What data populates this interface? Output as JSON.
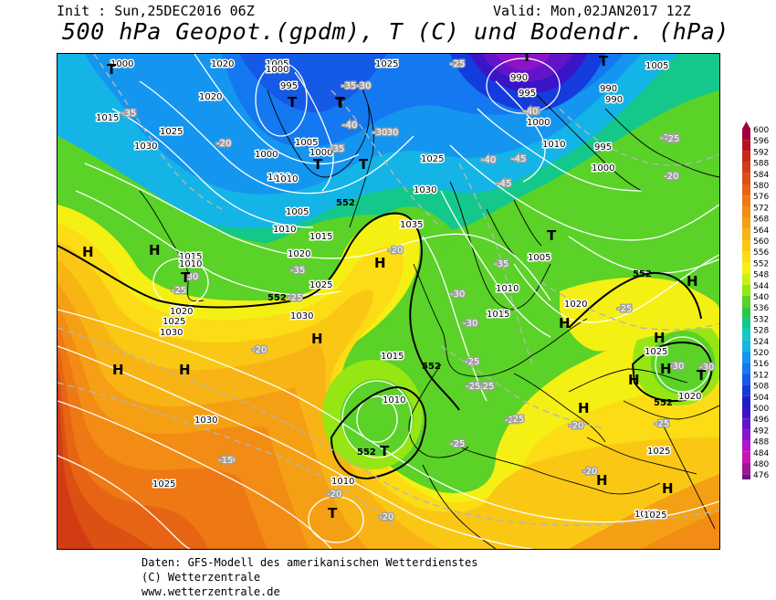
{
  "header": {
    "init_label": "Init : Sun,25DEC2016 06Z",
    "valid_label": "Valid: Mon,02JAN2017 12Z",
    "title": "500 hPa Geopot.(gpdm), T (C) und Bodendr. (hPa)"
  },
  "footer": {
    "line1": "Daten: GFS-Modell des amerikanischen Wetterdienstes",
    "line2": "(C) Wetterzentrale",
    "line3": "www.wetterzentrale.de"
  },
  "legend": {
    "levels": [
      "600",
      "596",
      "592",
      "588",
      "584",
      "580",
      "576",
      "572",
      "568",
      "564",
      "560",
      "556",
      "552",
      "548",
      "544",
      "540",
      "536",
      "532",
      "528",
      "524",
      "520",
      "516",
      "512",
      "508",
      "504",
      "500",
      "496",
      "492",
      "488",
      "484",
      "480",
      "476"
    ],
    "colors": [
      "#a0003c",
      "#b4141e",
      "#c82814",
      "#d23c14",
      "#dc5014",
      "#e66414",
      "#ee7814",
      "#f28c14",
      "#f5a014",
      "#f8b414",
      "#fac814",
      "#fcdc14",
      "#f5f014",
      "#c8f014",
      "#96e614",
      "#5ad228",
      "#28c846",
      "#14c88c",
      "#14c8c8",
      "#14b4e6",
      "#1496f0",
      "#1478f0",
      "#145ae6",
      "#143cdc",
      "#1e1ec8",
      "#3c14c8",
      "#6414c8",
      "#8c14c8",
      "#b414c8",
      "#c814b4",
      "#a01496",
      "#6e1482"
    ]
  },
  "map": {
    "pressure_labels": [
      {
        "text": "1000"
      },
      {
        "text": "1020"
      },
      {
        "text": "1005"
      },
      {
        "text": "1000"
      },
      {
        "text": "1025"
      },
      {
        "text": "995"
      },
      {
        "text": "1020"
      },
      {
        "text": "1015"
      },
      {
        "text": "1025"
      },
      {
        "text": "1030"
      },
      {
        "text": "1005"
      },
      {
        "text": "1000"
      },
      {
        "text": "1010"
      },
      {
        "text": "1000"
      },
      {
        "text": "1010"
      },
      {
        "text": "1005"
      },
      {
        "text": "1010"
      },
      {
        "text": "1015"
      },
      {
        "text": "1020"
      },
      {
        "text": "1025"
      },
      {
        "text": "1030"
      },
      {
        "text": "1035"
      },
      {
        "text": "1025"
      },
      {
        "text": "1030"
      },
      {
        "text": "1035"
      },
      {
        "text": "1015"
      },
      {
        "text": "1010"
      },
      {
        "text": "1020"
      },
      {
        "text": "1025"
      },
      {
        "text": "1030"
      },
      {
        "text": "990"
      },
      {
        "text": "995"
      },
      {
        "text": "1000"
      },
      {
        "text": "1010"
      },
      {
        "text": "990"
      },
      {
        "text": "990"
      },
      {
        "text": "995"
      },
      {
        "text": "1005"
      },
      {
        "text": "1000"
      },
      {
        "text": "1005"
      },
      {
        "text": "1010"
      },
      {
        "text": "1015"
      },
      {
        "text": "1020"
      },
      {
        "text": "1025"
      },
      {
        "text": "1015"
      },
      {
        "text": "1010"
      },
      {
        "text": "1030"
      },
      {
        "text": "1025"
      },
      {
        "text": "1025"
      },
      {
        "text": "1020"
      },
      {
        "text": "1010"
      },
      {
        "text": "1025"
      },
      {
        "text": "1025"
      }
    ],
    "temp_labels": [
      {
        "text": "-25"
      },
      {
        "text": "-30"
      },
      {
        "text": "-35"
      },
      {
        "text": "-40"
      },
      {
        "text": "-35"
      },
      {
        "text": "-30"
      },
      {
        "text": "-30"
      },
      {
        "text": "-35"
      },
      {
        "text": "-20"
      },
      {
        "text": "-25"
      },
      {
        "text": "-30"
      },
      {
        "text": "-35"
      },
      {
        "text": "-25"
      },
      {
        "text": "-20"
      },
      {
        "text": "-20"
      },
      {
        "text": "-20"
      },
      {
        "text": "-15"
      },
      {
        "text": "-20"
      },
      {
        "text": "-20"
      },
      {
        "text": "-40"
      },
      {
        "text": "-45"
      },
      {
        "text": "-45"
      },
      {
        "text": "-35"
      },
      {
        "text": "-40"
      },
      {
        "text": "-35"
      },
      {
        "text": "-30"
      },
      {
        "text": "-30"
      },
      {
        "text": "-25"
      },
      {
        "text": "-25"
      },
      {
        "text": "-25"
      },
      {
        "text": "-20"
      },
      {
        "text": "-25"
      },
      {
        "text": "-25"
      },
      {
        "text": "-20"
      },
      {
        "text": "-25"
      },
      {
        "text": "-30"
      },
      {
        "text": "-30"
      },
      {
        "text": "-25"
      },
      {
        "text": "-25"
      },
      {
        "text": "-25"
      },
      {
        "text": "-20"
      },
      {
        "text": "-20"
      }
    ],
    "isohypse_labels": [
      {
        "text": "552"
      },
      {
        "text": "552"
      },
      {
        "text": "552"
      },
      {
        "text": "552"
      },
      {
        "text": "552"
      },
      {
        "text": "552"
      }
    ],
    "markers": [
      {
        "text": "T"
      },
      {
        "text": "T"
      },
      {
        "text": "T"
      },
      {
        "text": "T"
      },
      {
        "text": "T"
      },
      {
        "text": "T"
      },
      {
        "text": "T"
      },
      {
        "text": "T"
      },
      {
        "text": "T"
      },
      {
        "text": "T"
      },
      {
        "text": "T"
      },
      {
        "text": "T"
      },
      {
        "text": "T"
      },
      {
        "text": "H"
      },
      {
        "text": "H"
      },
      {
        "text": "H"
      },
      {
        "text": "H"
      },
      {
        "text": "H"
      },
      {
        "text": "H"
      },
      {
        "text": "H"
      },
      {
        "text": "H"
      },
      {
        "text": "H"
      },
      {
        "text": "H"
      },
      {
        "text": "H"
      },
      {
        "text": "H"
      },
      {
        "text": "H"
      },
      {
        "text": "H"
      }
    ]
  }
}
